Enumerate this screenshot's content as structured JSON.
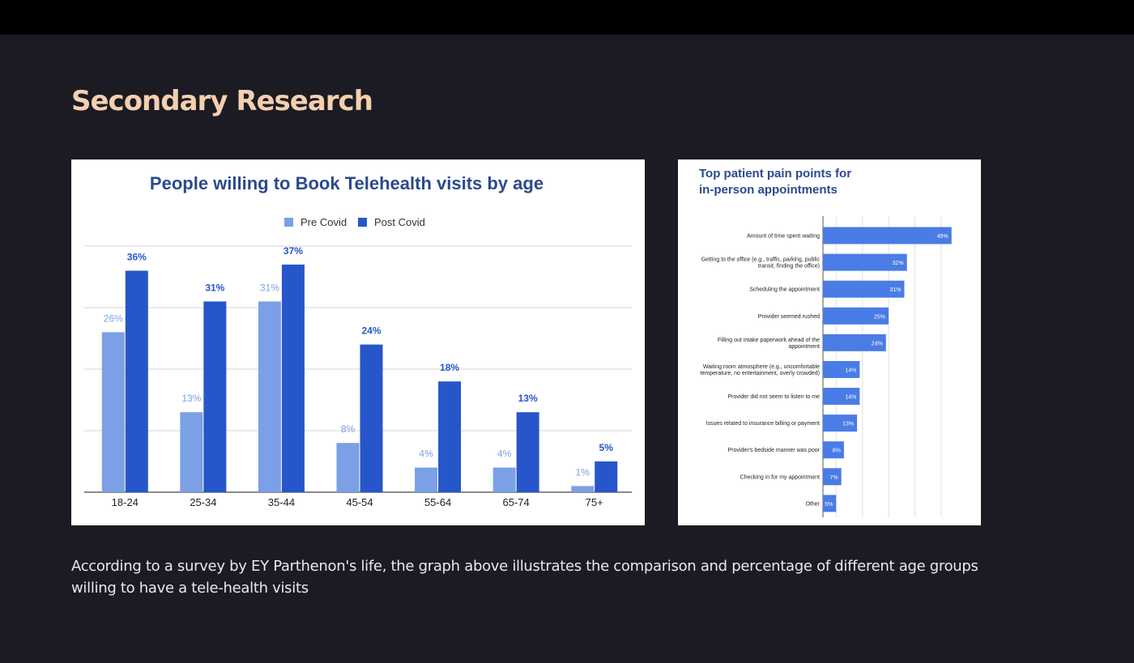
{
  "page": {
    "title": "Secondary Research",
    "caption": "According to a survey by EY Parthenon's life, the graph above illustrates the comparison and percentage of different age groups willing to have a tele-health visits"
  },
  "chart_data": [
    {
      "type": "bar",
      "title": "People willing to Book Telehealth visits by age",
      "categories": [
        "18-24",
        "25-34",
        "35-44",
        "45-54",
        "55-64",
        "65-74",
        "75+"
      ],
      "series": [
        {
          "name": "Pre Covid",
          "values": [
            26,
            13,
            31,
            8,
            4,
            4,
            1
          ],
          "labels": [
            "26%",
            "13%",
            "31%",
            "8%",
            "4%",
            "4%",
            "1%"
          ],
          "color": "#7ba0e6"
        },
        {
          "name": "Post Covid",
          "values": [
            36,
            31,
            37,
            24,
            18,
            13,
            5
          ],
          "labels": [
            "36%",
            "31%",
            "37%",
            "24%",
            "18%",
            "13%",
            "5%"
          ],
          "color": "#2656c9"
        }
      ],
      "ylim": [
        0,
        40
      ],
      "grid": true,
      "legend": "top-center"
    },
    {
      "type": "bar",
      "orientation": "horizontal",
      "title_lines": [
        "Top patient pain points for",
        "in-person appointments"
      ],
      "categories": [
        [
          "Amount of time spent waiting"
        ],
        [
          "Getting to the office (e.g., traffic, parking, public",
          "transit, finding the office)"
        ],
        [
          "Scheduling the appointment"
        ],
        [
          "Provider seemed rushed"
        ],
        [
          "Filling out intake paperwork ahead of the",
          "appointment"
        ],
        [
          "Waiting room atmosphere (e.g., uncomfortable",
          "temperature, no entertainment, overly crowded)"
        ],
        [
          "Provider did not seem to listen to me"
        ],
        [
          "Issues related to insurance billing or payment"
        ],
        [
          "Provider's bedside manner was poor"
        ],
        [
          "Checking in for my appointment"
        ],
        [
          "Other"
        ]
      ],
      "values": [
        49,
        32,
        31,
        25,
        24,
        14,
        14,
        13,
        8,
        7,
        5
      ],
      "labels": [
        "49%",
        "32%",
        "31%",
        "25%",
        "24%",
        "14%",
        "14%",
        "13%",
        "8%",
        "7%",
        "5%"
      ],
      "color": "#4a7ce5",
      "xlim": [
        0,
        50
      ],
      "grid": true
    }
  ]
}
